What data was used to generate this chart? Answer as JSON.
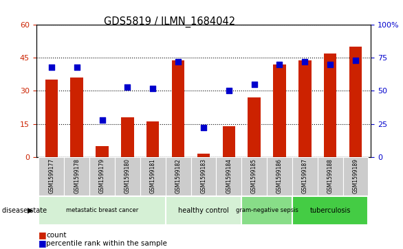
{
  "title": "GDS5819 / ILMN_1684042",
  "samples": [
    "GSM1599177",
    "GSM1599178",
    "GSM1599179",
    "GSM1599180",
    "GSM1599181",
    "GSM1599182",
    "GSM1599183",
    "GSM1599184",
    "GSM1599185",
    "GSM1599186",
    "GSM1599187",
    "GSM1599188",
    "GSM1599189"
  ],
  "counts": [
    35,
    36,
    5,
    18,
    16,
    44,
    1.5,
    14,
    27,
    42,
    44,
    47,
    50
  ],
  "percentiles": [
    68,
    68,
    28,
    53,
    52,
    72,
    22,
    50,
    55,
    70,
    72,
    70,
    73
  ],
  "disease_groups": [
    {
      "label": "metastatic breast cancer",
      "start": 0,
      "end": 5,
      "color": "#d5f0d5"
    },
    {
      "label": "healthy control",
      "start": 5,
      "end": 8,
      "color": "#d5f0d5"
    },
    {
      "label": "gram-negative sepsis",
      "start": 8,
      "end": 10,
      "color": "#88dd88"
    },
    {
      "label": "tuberculosis",
      "start": 10,
      "end": 13,
      "color": "#44cc44"
    }
  ],
  "ylim_left": [
    0,
    60
  ],
  "ylim_right": [
    0,
    100
  ],
  "yticks_left": [
    0,
    15,
    30,
    45,
    60
  ],
  "yticks_right": [
    0,
    25,
    50,
    75,
    100
  ],
  "ytick_labels_right": [
    "0",
    "25",
    "50",
    "75",
    "100%"
  ],
  "bar_color": "#cc2200",
  "dot_color": "#0000cc",
  "bar_width": 0.5,
  "dot_size": 35,
  "tick_label_color_left": "#cc2200",
  "tick_label_color_right": "#0000cc"
}
